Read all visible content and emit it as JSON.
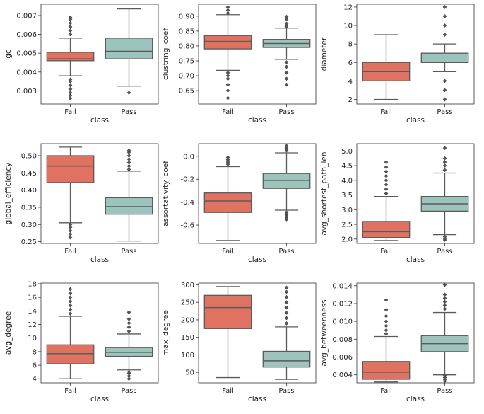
{
  "chart_data": [
    {
      "type": "box",
      "title": "",
      "xlabel": "class",
      "ylabel": "gc",
      "categories": [
        "Fail",
        "Pass"
      ],
      "ylim": [
        0.0023,
        0.0076
      ],
      "yticks": [
        0.003,
        0.004,
        0.005,
        0.006,
        0.007
      ],
      "ytick_labels": [
        "0.003",
        "0.004",
        "0.005",
        "0.006",
        "0.007"
      ],
      "boxes": [
        {
          "label": "Fail",
          "q1": 0.0046,
          "median": 0.0047,
          "q3": 0.00505,
          "whisker_low": 0.0038,
          "whisker_high": 0.0058,
          "outliers": [
            0.0026,
            0.00275,
            0.0029,
            0.0031,
            0.0033,
            0.0035,
            0.0036,
            0.006,
            0.0062,
            0.0064,
            0.0066,
            0.0068,
            0.0069
          ]
        },
        {
          "label": "Pass",
          "q1": 0.0047,
          "median": 0.0051,
          "q3": 0.0058,
          "whisker_low": 0.00325,
          "whisker_high": 0.00735,
          "outliers": [
            0.0029
          ]
        }
      ]
    },
    {
      "type": "box",
      "title": "",
      "xlabel": "class",
      "ylabel": "clustring_coef",
      "categories": [
        "Fail",
        "Pass"
      ],
      "ylim": [
        0.605,
        0.94
      ],
      "yticks": [
        0.65,
        0.7,
        0.75,
        0.8,
        0.85,
        0.9
      ],
      "ytick_labels": [
        "0.65",
        "0.70",
        "0.75",
        "0.80",
        "0.85",
        "0.90"
      ],
      "boxes": [
        {
          "label": "Fail",
          "q1": 0.79,
          "median": 0.815,
          "q3": 0.835,
          "whisker_low": 0.718,
          "whisker_high": 0.905,
          "outliers": [
            0.625,
            0.65,
            0.67,
            0.69,
            0.7,
            0.71,
            0.91,
            0.92,
            0.93
          ]
        },
        {
          "label": "Pass",
          "q1": 0.795,
          "median": 0.808,
          "q3": 0.822,
          "whisker_low": 0.755,
          "whisker_high": 0.86,
          "outliers": [
            0.67,
            0.69,
            0.71,
            0.73,
            0.745,
            0.865,
            0.875,
            0.89,
            0.898
          ]
        }
      ]
    },
    {
      "type": "box",
      "title": "",
      "xlabel": "class",
      "ylabel": "diameter",
      "categories": [
        "Fail",
        "Pass"
      ],
      "ylim": [
        1.5,
        12.3
      ],
      "yticks": [
        2,
        4,
        6,
        8,
        10,
        12
      ],
      "ytick_labels": [
        "2",
        "4",
        "6",
        "8",
        "10",
        "12"
      ],
      "boxes": [
        {
          "label": "Fail",
          "q1": 4,
          "median": 5,
          "q3": 6,
          "whisker_low": 2,
          "whisker_high": 9,
          "outliers": []
        },
        {
          "label": "Pass",
          "q1": 6,
          "median": 6,
          "q3": 7,
          "whisker_low": 5,
          "whisker_high": 8,
          "outliers": [
            2,
            3,
            4,
            9,
            10,
            11,
            12
          ]
        }
      ]
    },
    {
      "type": "box",
      "title": "",
      "xlabel": "class",
      "ylabel": "global_efficiency",
      "categories": [
        "Fail",
        "Pass"
      ],
      "ylim": [
        0.245,
        0.535
      ],
      "yticks": [
        0.25,
        0.3,
        0.35,
        0.4,
        0.45,
        0.5
      ],
      "ytick_labels": [
        "0.25",
        "0.30",
        "0.35",
        "0.40",
        "0.45",
        "0.50"
      ],
      "boxes": [
        {
          "label": "Fail",
          "q1": 0.422,
          "median": 0.47,
          "q3": 0.5,
          "whisker_low": 0.305,
          "whisker_high": 0.525,
          "outliers": [
            0.262,
            0.272,
            0.282,
            0.292,
            0.3
          ]
        },
        {
          "label": "Pass",
          "q1": 0.33,
          "median": 0.352,
          "q3": 0.378,
          "whisker_low": 0.252,
          "whisker_high": 0.455,
          "outliers": [
            0.46,
            0.47,
            0.48,
            0.49,
            0.5,
            0.51,
            0.515
          ]
        }
      ]
    },
    {
      "type": "box",
      "title": "",
      "xlabel": "class",
      "ylabel": "assortativity_coef",
      "categories": [
        "Fail",
        "Pass"
      ],
      "ylim": [
        -0.76,
        0.11
      ],
      "yticks": [
        -0.6,
        -0.4,
        -0.2,
        0.0
      ],
      "ytick_labels": [
        "-0.6",
        "-0.4",
        "-0.2",
        "0.0"
      ],
      "boxes": [
        {
          "label": "Fail",
          "q1": -0.49,
          "median": -0.39,
          "q3": -0.32,
          "whisker_low": -0.735,
          "whisker_high": -0.09,
          "outliers": [
            -0.07,
            -0.05,
            -0.03,
            -0.01
          ]
        },
        {
          "label": "Pass",
          "q1": -0.28,
          "median": -0.21,
          "q3": -0.15,
          "whisker_low": -0.47,
          "whisker_high": 0.03,
          "outliers": [
            -0.49,
            -0.51,
            -0.53,
            -0.55,
            0.05,
            0.07,
            0.09
          ]
        }
      ]
    },
    {
      "type": "box",
      "title": "",
      "xlabel": "class",
      "ylabel": "avg_shortest_path_len",
      "categories": [
        "Fail",
        "Pass"
      ],
      "ylim": [
        1.85,
        5.25
      ],
      "yticks": [
        2.0,
        2.5,
        3.0,
        3.5,
        4.0,
        4.5,
        5.0
      ],
      "ytick_labels": [
        "2.0",
        "2.5",
        "3.0",
        "3.5",
        "4.0",
        "4.5",
        "5.0"
      ],
      "boxes": [
        {
          "label": "Fail",
          "q1": 2.05,
          "median": 2.25,
          "q3": 2.6,
          "whisker_low": 1.95,
          "whisker_high": 3.45,
          "outliers": [
            3.55,
            3.7,
            3.85,
            4.0,
            4.15,
            4.3,
            4.45,
            4.62
          ]
        },
        {
          "label": "Pass",
          "q1": 2.95,
          "median": 3.2,
          "q3": 3.45,
          "whisker_low": 2.15,
          "whisker_high": 4.25,
          "outliers": [
            1.97,
            2.02,
            2.08,
            4.35,
            4.5,
            4.62,
            4.75,
            5.1
          ]
        }
      ]
    },
    {
      "type": "box",
      "title": "",
      "xlabel": "class",
      "ylabel": "avg_degree",
      "categories": [
        "Fail",
        "Pass"
      ],
      "ylim": [
        3.4,
        18.1
      ],
      "yticks": [
        4,
        6,
        8,
        10,
        12,
        14,
        16,
        18
      ],
      "ytick_labels": [
        "4",
        "6",
        "8",
        "10",
        "12",
        "14",
        "16",
        "18"
      ],
      "boxes": [
        {
          "label": "Fail",
          "q1": 6.2,
          "median": 7.7,
          "q3": 9.0,
          "whisker_low": 4.0,
          "whisker_high": 13.2,
          "outliers": [
            13.6,
            14.2,
            14.8,
            15.4,
            16.0,
            16.6,
            17.2
          ]
        },
        {
          "label": "Pass",
          "q1": 7.3,
          "median": 7.9,
          "q3": 8.6,
          "whisker_low": 5.3,
          "whisker_high": 10.6,
          "outliers": [
            4.0,
            4.4,
            4.8,
            5.0,
            11.0,
            11.6,
            12.2,
            12.8,
            13.8
          ]
        }
      ]
    },
    {
      "type": "box",
      "title": "",
      "xlabel": "class",
      "ylabel": "max_degree",
      "categories": [
        "Fail",
        "Pass"
      ],
      "ylim": [
        20,
        305
      ],
      "yticks": [
        50,
        100,
        150,
        200,
        250,
        300
      ],
      "ytick_labels": [
        "50",
        "100",
        "150",
        "200",
        "250",
        "300"
      ],
      "boxes": [
        {
          "label": "Fail",
          "q1": 175,
          "median": 235,
          "q3": 270,
          "whisker_low": 35,
          "whisker_high": 295,
          "outliers": []
        },
        {
          "label": "Pass",
          "q1": 65,
          "median": 83,
          "q3": 110,
          "whisker_low": 30,
          "whisker_high": 180,
          "outliers": [
            190,
            205,
            220,
            235,
            250,
            265,
            280,
            292
          ]
        }
      ]
    },
    {
      "type": "box",
      "title": "",
      "xlabel": "class",
      "ylabel": "avg_betweenness",
      "categories": [
        "Fail",
        "Pass"
      ],
      "ylim": [
        0.0031,
        0.0143
      ],
      "yticks": [
        0.004,
        0.006,
        0.008,
        0.01,
        0.012,
        0.014
      ],
      "ytick_labels": [
        "0.004",
        "0.006",
        "0.008",
        "0.010",
        "0.012",
        "0.014"
      ],
      "boxes": [
        {
          "label": "Fail",
          "q1": 0.0035,
          "median": 0.0043,
          "q3": 0.0055,
          "whisker_low": 0.0032,
          "whisker_high": 0.0083,
          "outliers": [
            0.0086,
            0.009,
            0.0095,
            0.01,
            0.0106,
            0.0113,
            0.0124
          ]
        },
        {
          "label": "Pass",
          "q1": 0.0066,
          "median": 0.0075,
          "q3": 0.0084,
          "whisker_low": 0.004,
          "whisker_high": 0.011,
          "outliers": [
            0.0033,
            0.0035,
            0.0037,
            0.0039,
            0.0114,
            0.0118,
            0.0122,
            0.0126,
            0.013,
            0.0141
          ]
        }
      ]
    }
  ],
  "colors": {
    "fail_box": "#e07262",
    "pass_box": "#9cc4bd",
    "line": "#5a5a5a",
    "frame": "#333333"
  }
}
